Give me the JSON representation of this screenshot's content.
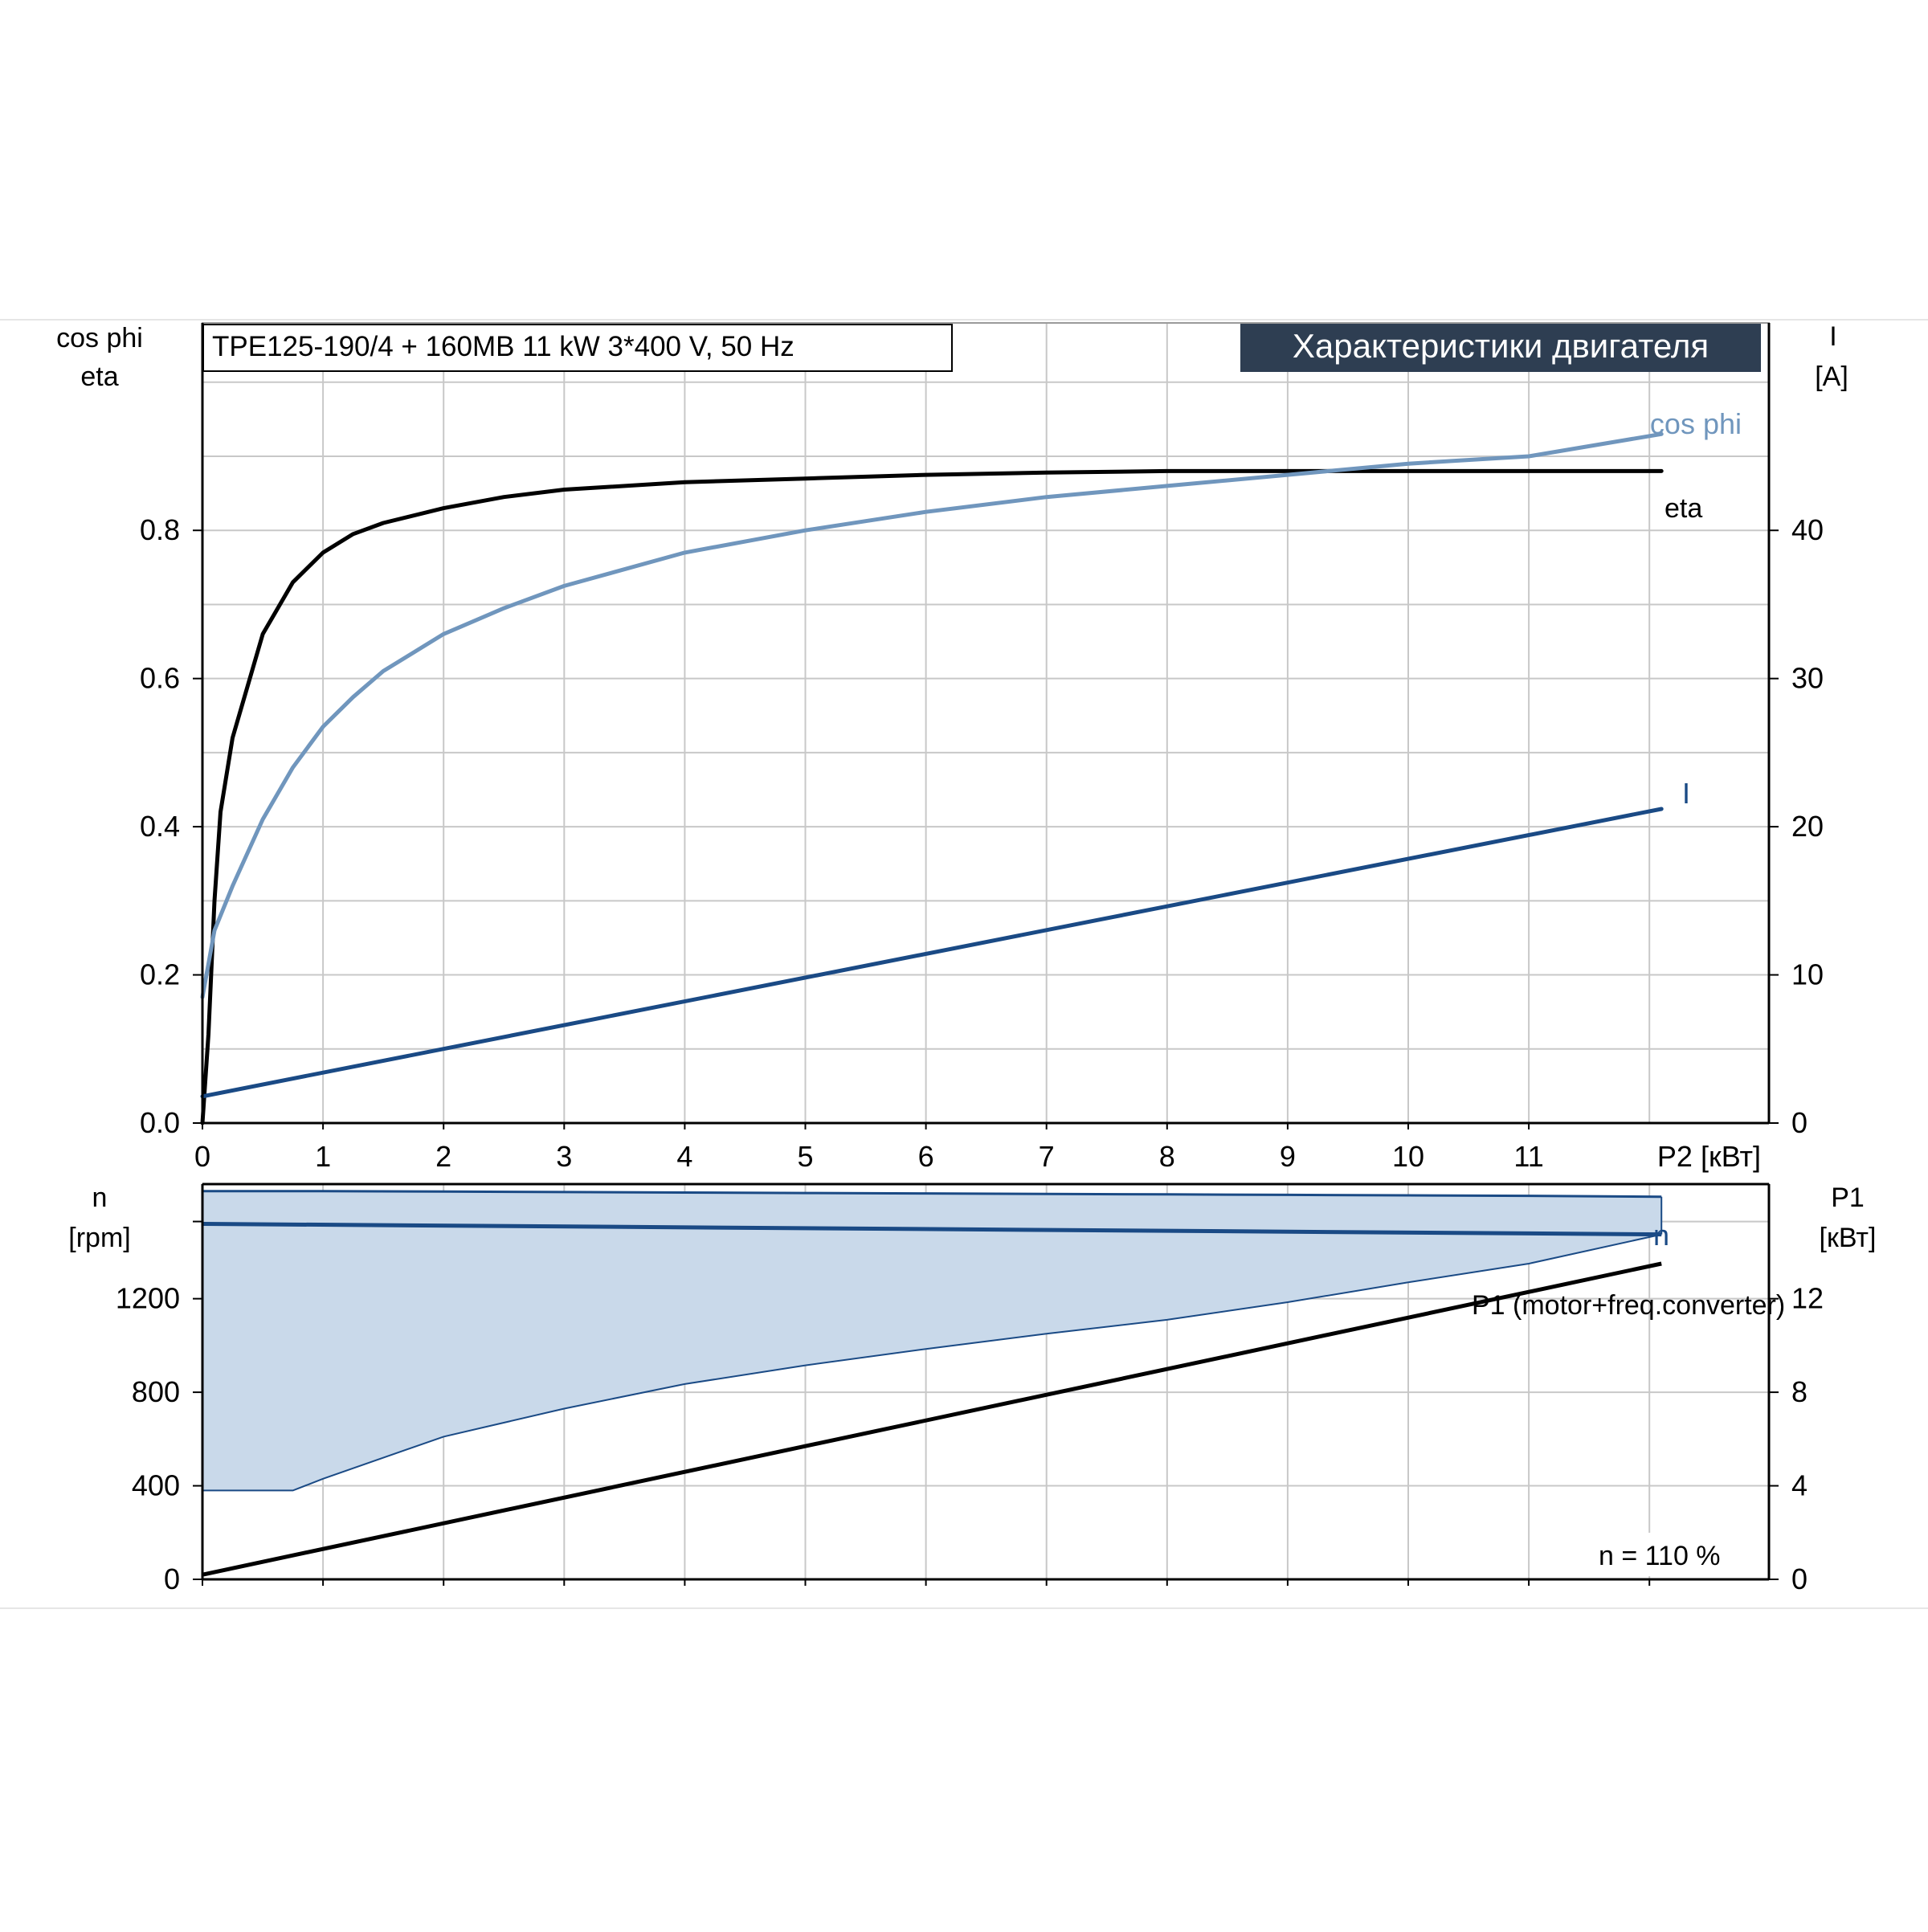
{
  "header": {
    "model_label": "TPE125-190/4 + 160MB   11 kW   3*400 V, 50 Hz",
    "title_badge": "Характеристики двигателя"
  },
  "colors": {
    "grid": "#c8c8c8",
    "axis": "#000000",
    "eta": "#000000",
    "cos_phi": "#7096bd",
    "current": "#1a4a85",
    "speed_band": "#c9d9ea",
    "speed_band_edge": "#1a4a85",
    "badge_bg": "#2e3e52",
    "badge_text": "#ffffff"
  },
  "chart_data": [
    {
      "type": "line",
      "x_axis_label": "P2 [кВт]",
      "xlim": [
        0,
        12.1
      ],
      "x_ticks": [
        "0",
        "1",
        "2",
        "3",
        "4",
        "5",
        "6",
        "7",
        "8",
        "9",
        "10",
        "11"
      ],
      "left_axis_label_line1": "cos phi",
      "left_axis_label_line2": "eta",
      "ylim_left": [
        0,
        1.08
      ],
      "left_ticks": [
        "0.0",
        "0.2",
        "0.4",
        "0.6",
        "0.8"
      ],
      "right_axis_label_line1": "I",
      "right_axis_label_line2": "[A]",
      "ylim_right": [
        0,
        54
      ],
      "right_ticks": [
        "0",
        "10",
        "20",
        "30",
        "40"
      ],
      "grid": true,
      "series": [
        {
          "name": "eta",
          "axis": "left",
          "x": [
            0,
            0.05,
            0.1,
            0.15,
            0.25,
            0.5,
            0.75,
            1.0,
            1.25,
            1.5,
            2.0,
            2.5,
            3.0,
            4.0,
            5.0,
            6.0,
            7.0,
            8.0,
            9.0,
            10.0,
            11.0,
            12.1
          ],
          "y": [
            0.0,
            0.12,
            0.3,
            0.42,
            0.52,
            0.66,
            0.73,
            0.77,
            0.795,
            0.81,
            0.83,
            0.845,
            0.855,
            0.865,
            0.87,
            0.875,
            0.878,
            0.88,
            0.88,
            0.88,
            0.88,
            0.88
          ]
        },
        {
          "name": "cos phi",
          "axis": "left",
          "x": [
            0,
            0.1,
            0.25,
            0.5,
            0.75,
            1.0,
            1.25,
            1.5,
            2.0,
            2.5,
            3.0,
            4.0,
            5.0,
            6.0,
            7.0,
            8.0,
            9.0,
            10.0,
            11.0,
            12.1
          ],
          "y": [
            0.17,
            0.26,
            0.32,
            0.41,
            0.48,
            0.535,
            0.575,
            0.61,
            0.66,
            0.695,
            0.725,
            0.77,
            0.8,
            0.825,
            0.845,
            0.86,
            0.875,
            0.89,
            0.9,
            0.93
          ]
        },
        {
          "name": "I",
          "axis": "right",
          "x": [
            0,
            12.1
          ],
          "y": [
            1.8,
            21.2
          ]
        }
      ]
    },
    {
      "type": "area",
      "x_axis_label": "",
      "xlim": [
        0,
        12.1
      ],
      "left_axis_label_line1": "n",
      "left_axis_label_line2": "[rpm]",
      "ylim_left": [
        0,
        1690
      ],
      "left_ticks": [
        "0",
        "400",
        "800",
        "1200"
      ],
      "right_axis_label_line1": "P1",
      "right_axis_label_line2": "[кВт]",
      "ylim_right": [
        0,
        16.9
      ],
      "right_ticks": [
        "0",
        "4",
        "8",
        "12"
      ],
      "grid": true,
      "speed_band": {
        "x": [
          0,
          0.75,
          1.0,
          2.0,
          3.0,
          4.0,
          5.0,
          6.0,
          7.0,
          8.0,
          9.0,
          10.0,
          11.0,
          12.1
        ],
        "upper": [
          1660,
          1660,
          1660,
          1658,
          1656,
          1654,
          1652,
          1650,
          1648,
          1646,
          1644,
          1642,
          1640,
          1636
        ],
        "lower": [
          380,
          380,
          430,
          610,
          730,
          835,
          915,
          985,
          1050,
          1110,
          1185,
          1270,
          1350,
          1475
        ]
      },
      "series": [
        {
          "name": "n",
          "axis": "left",
          "x": [
            0,
            12.1
          ],
          "y": [
            1520,
            1475
          ]
        },
        {
          "name": "P1 (motor+freq.converter)",
          "axis": "right",
          "x": [
            0,
            12.1
          ],
          "y": [
            0.2,
            13.5
          ]
        }
      ],
      "annotation": "n = 110 %"
    }
  ]
}
